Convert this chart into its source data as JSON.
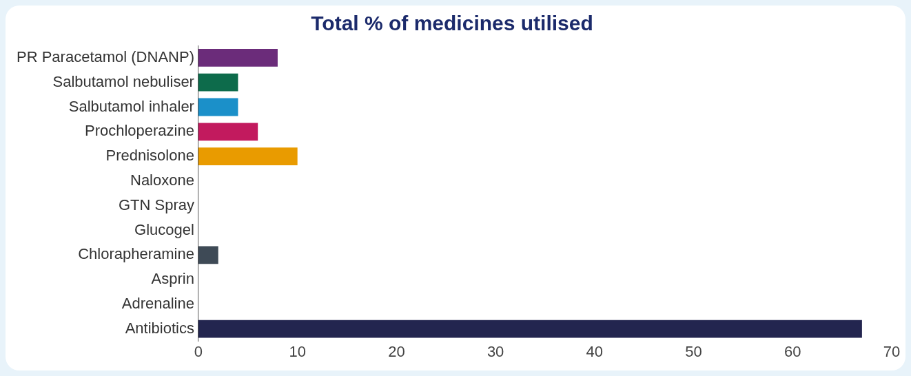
{
  "chart_data": {
    "type": "bar",
    "orientation": "horizontal",
    "title": "Total % of medicines utilised",
    "categories": [
      "PR Paracetamol (DNANP)",
      "Salbutamol nebuliser",
      "Salbutamol inhaler",
      "Prochloperazine",
      "Prednisolone",
      "Naloxone",
      "GTN Spray",
      "Glucogel",
      "Chlorapheramine",
      "Asprin",
      "Adrenaline",
      "Antibiotics"
    ],
    "values": [
      8,
      4,
      4,
      6,
      10,
      0,
      0,
      0,
      2,
      0,
      0,
      67
    ],
    "colors": [
      "#6b2c7a",
      "#0d6b4b",
      "#1b90c9",
      "#c21a5e",
      "#e99b00",
      "#888888",
      "#888888",
      "#888888",
      "#3e4a56",
      "#888888",
      "#888888",
      "#23254f"
    ],
    "xlim": [
      0,
      70
    ],
    "xticks": [
      0,
      10,
      20,
      30,
      40,
      50,
      60,
      70
    ],
    "grid": false,
    "legend": false
  }
}
